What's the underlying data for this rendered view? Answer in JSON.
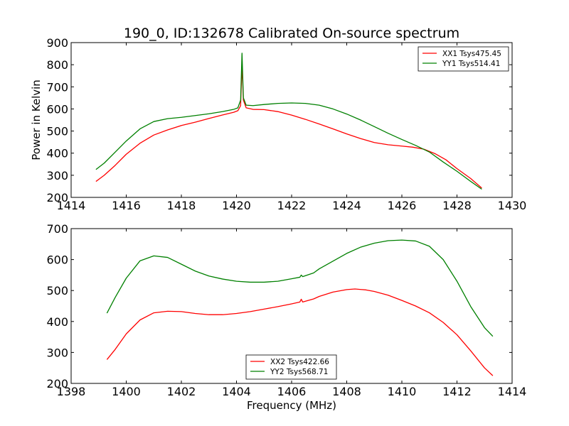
{
  "figure": {
    "title": "190_0, ID:132678 Calibrated On-source spectrum",
    "ylabel": "Power in Kelvin",
    "xlabel": "Frequency (MHz)"
  },
  "chart_data": [
    {
      "type": "line",
      "title": "190_0, ID:132678 Calibrated On-source spectrum",
      "xlabel": "",
      "ylabel": "Power in Kelvin",
      "xlim": [
        1414,
        1430
      ],
      "ylim": [
        200,
        900
      ],
      "xticks": [
        1414,
        1416,
        1418,
        1420,
        1422,
        1424,
        1426,
        1428,
        1430
      ],
      "yticks": [
        200,
        300,
        400,
        500,
        600,
        700,
        800,
        900
      ],
      "grid": false,
      "legend_position": "top-right",
      "series": [
        {
          "name": "XX1 Tsys475.45",
          "color": "#ff0000",
          "points": [
            [
              1414.9,
              272
            ],
            [
              1415.2,
              300
            ],
            [
              1415.6,
              345
            ],
            [
              1416.0,
              395
            ],
            [
              1416.5,
              445
            ],
            [
              1417.0,
              482
            ],
            [
              1417.5,
              505
            ],
            [
              1418.0,
              525
            ],
            [
              1418.5,
              540
            ],
            [
              1419.0,
              557
            ],
            [
              1419.5,
              573
            ],
            [
              1419.9,
              585
            ],
            [
              1420.05,
              592
            ],
            [
              1420.15,
              615
            ],
            [
              1420.2,
              800
            ],
            [
              1420.25,
              640
            ],
            [
              1420.35,
              605
            ],
            [
              1420.6,
              598
            ],
            [
              1421.0,
              597
            ],
            [
              1421.5,
              588
            ],
            [
              1422.0,
              572
            ],
            [
              1422.5,
              553
            ],
            [
              1423.0,
              532
            ],
            [
              1423.5,
              510
            ],
            [
              1424.0,
              487
            ],
            [
              1424.5,
              466
            ],
            [
              1425.0,
              448
            ],
            [
              1425.5,
              438
            ],
            [
              1426.0,
              432
            ],
            [
              1426.4,
              427
            ],
            [
              1426.8,
              418
            ],
            [
              1427.2,
              398
            ],
            [
              1427.6,
              370
            ],
            [
              1428.0,
              330
            ],
            [
              1428.5,
              285
            ],
            [
              1428.9,
              242
            ]
          ]
        },
        {
          "name": "YY1 Tsys514.41",
          "color": "#008000",
          "points": [
            [
              1414.9,
              326
            ],
            [
              1415.2,
              355
            ],
            [
              1415.6,
              405
            ],
            [
              1416.0,
              455
            ],
            [
              1416.5,
              510
            ],
            [
              1417.0,
              543
            ],
            [
              1417.5,
              556
            ],
            [
              1418.0,
              562
            ],
            [
              1418.5,
              570
            ],
            [
              1419.0,
              578
            ],
            [
              1419.5,
              588
            ],
            [
              1419.9,
              598
            ],
            [
              1420.05,
              605
            ],
            [
              1420.15,
              640
            ],
            [
              1420.2,
              852
            ],
            [
              1420.25,
              650
            ],
            [
              1420.35,
              617
            ],
            [
              1420.6,
              615
            ],
            [
              1421.0,
              620
            ],
            [
              1421.5,
              625
            ],
            [
              1422.0,
              627
            ],
            [
              1422.5,
              625
            ],
            [
              1423.0,
              617
            ],
            [
              1423.5,
              600
            ],
            [
              1424.0,
              577
            ],
            [
              1424.5,
              550
            ],
            [
              1425.0,
              520
            ],
            [
              1425.5,
              490
            ],
            [
              1426.0,
              462
            ],
            [
              1426.5,
              435
            ],
            [
              1427.0,
              405
            ],
            [
              1427.5,
              360
            ],
            [
              1428.0,
              318
            ],
            [
              1428.5,
              272
            ],
            [
              1428.9,
              237
            ]
          ]
        }
      ]
    },
    {
      "type": "line",
      "title": "",
      "xlabel": "Frequency (MHz)",
      "ylabel": "",
      "xlim": [
        1398,
        1414
      ],
      "ylim": [
        200,
        700
      ],
      "xticks": [
        1398,
        1400,
        1402,
        1404,
        1406,
        1408,
        1410,
        1412,
        1414
      ],
      "yticks": [
        200,
        300,
        400,
        500,
        600,
        700
      ],
      "grid": false,
      "legend_position": "bottom-center",
      "series": [
        {
          "name": "XX2 Tsys422.66",
          "color": "#ff0000",
          "points": [
            [
              1399.3,
              277
            ],
            [
              1399.6,
              310
            ],
            [
              1400.0,
              360
            ],
            [
              1400.5,
              405
            ],
            [
              1401.0,
              428
            ],
            [
              1401.5,
              433
            ],
            [
              1402.0,
              432
            ],
            [
              1402.5,
              426
            ],
            [
              1403.0,
              422
            ],
            [
              1403.5,
              422
            ],
            [
              1404.0,
              426
            ],
            [
              1404.5,
              432
            ],
            [
              1405.0,
              440
            ],
            [
              1405.5,
              448
            ],
            [
              1406.0,
              457
            ],
            [
              1406.3,
              463
            ],
            [
              1406.35,
              472
            ],
            [
              1406.4,
              463
            ],
            [
              1406.8,
              473
            ],
            [
              1407.0,
              481
            ],
            [
              1407.5,
              495
            ],
            [
              1408.0,
              503
            ],
            [
              1408.3,
              505
            ],
            [
              1408.7,
              502
            ],
            [
              1409.0,
              497
            ],
            [
              1409.5,
              485
            ],
            [
              1410.0,
              468
            ],
            [
              1410.5,
              450
            ],
            [
              1411.0,
              428
            ],
            [
              1411.5,
              397
            ],
            [
              1412.0,
              357
            ],
            [
              1412.5,
              305
            ],
            [
              1413.0,
              250
            ],
            [
              1413.3,
              225
            ]
          ]
        },
        {
          "name": "YY2 Tsys568.71",
          "color": "#008000",
          "points": [
            [
              1399.3,
              427
            ],
            [
              1399.6,
              478
            ],
            [
              1400.0,
              540
            ],
            [
              1400.5,
              596
            ],
            [
              1401.0,
              612
            ],
            [
              1401.5,
              607
            ],
            [
              1402.0,
              585
            ],
            [
              1402.5,
              563
            ],
            [
              1403.0,
              547
            ],
            [
              1403.5,
              537
            ],
            [
              1404.0,
              530
            ],
            [
              1404.5,
              527
            ],
            [
              1405.0,
              527
            ],
            [
              1405.5,
              530
            ],
            [
              1406.0,
              538
            ],
            [
              1406.3,
              543
            ],
            [
              1406.35,
              550
            ],
            [
              1406.4,
              545
            ],
            [
              1406.8,
              557
            ],
            [
              1407.0,
              570
            ],
            [
              1407.5,
              595
            ],
            [
              1408.0,
              620
            ],
            [
              1408.5,
              640
            ],
            [
              1409.0,
              653
            ],
            [
              1409.5,
              661
            ],
            [
              1410.0,
              663
            ],
            [
              1410.5,
              660
            ],
            [
              1411.0,
              643
            ],
            [
              1411.5,
              600
            ],
            [
              1412.0,
              530
            ],
            [
              1412.5,
              448
            ],
            [
              1413.0,
              380
            ],
            [
              1413.3,
              352
            ]
          ]
        }
      ]
    }
  ]
}
